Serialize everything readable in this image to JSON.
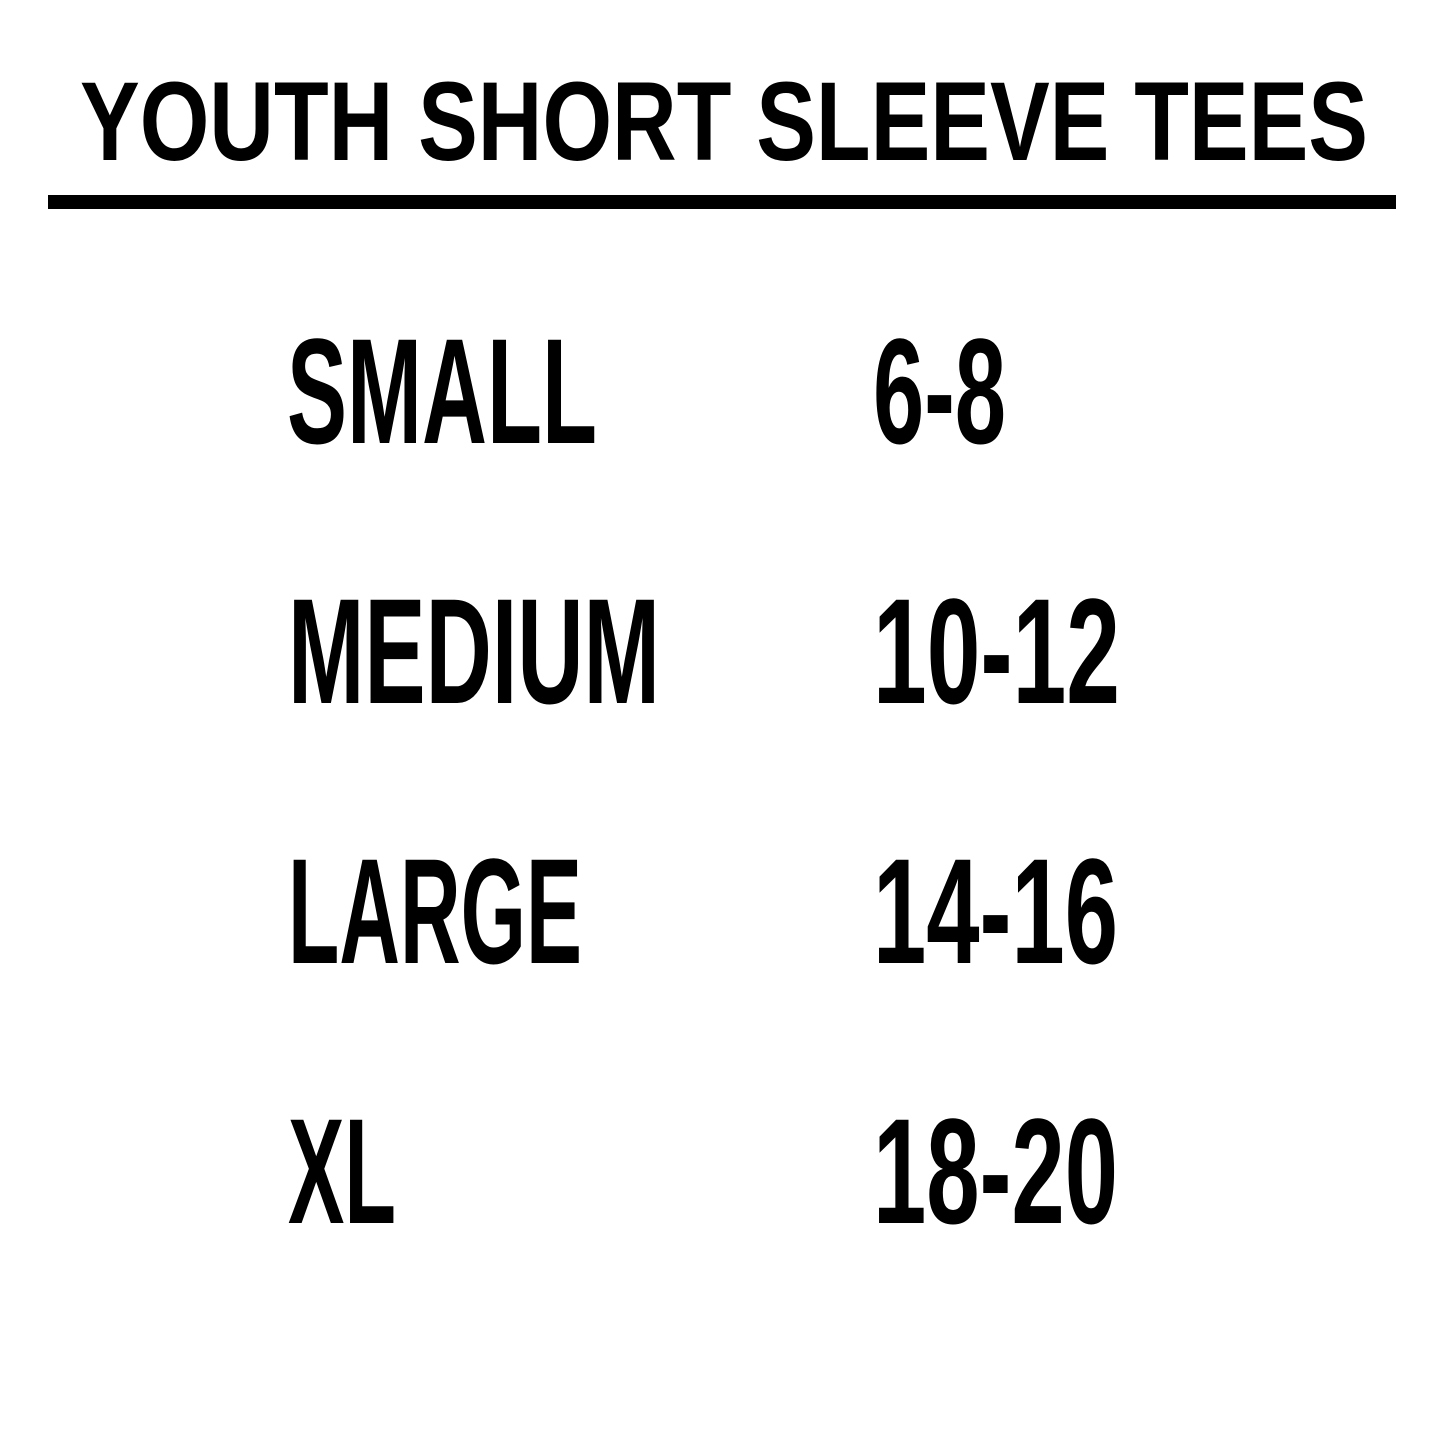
{
  "title": "YOUTH SHORT SLEEVE TEES",
  "colors": {
    "text": "#000000",
    "background": "#ffffff",
    "rule": "#000000"
  },
  "sizes": [
    {
      "size": "SMALL",
      "range": "6-8"
    },
    {
      "size": "MEDIUM",
      "range": "10-12"
    },
    {
      "size": "LARGE",
      "range": "14-16"
    },
    {
      "size": "XL",
      "range": "18-20"
    }
  ]
}
